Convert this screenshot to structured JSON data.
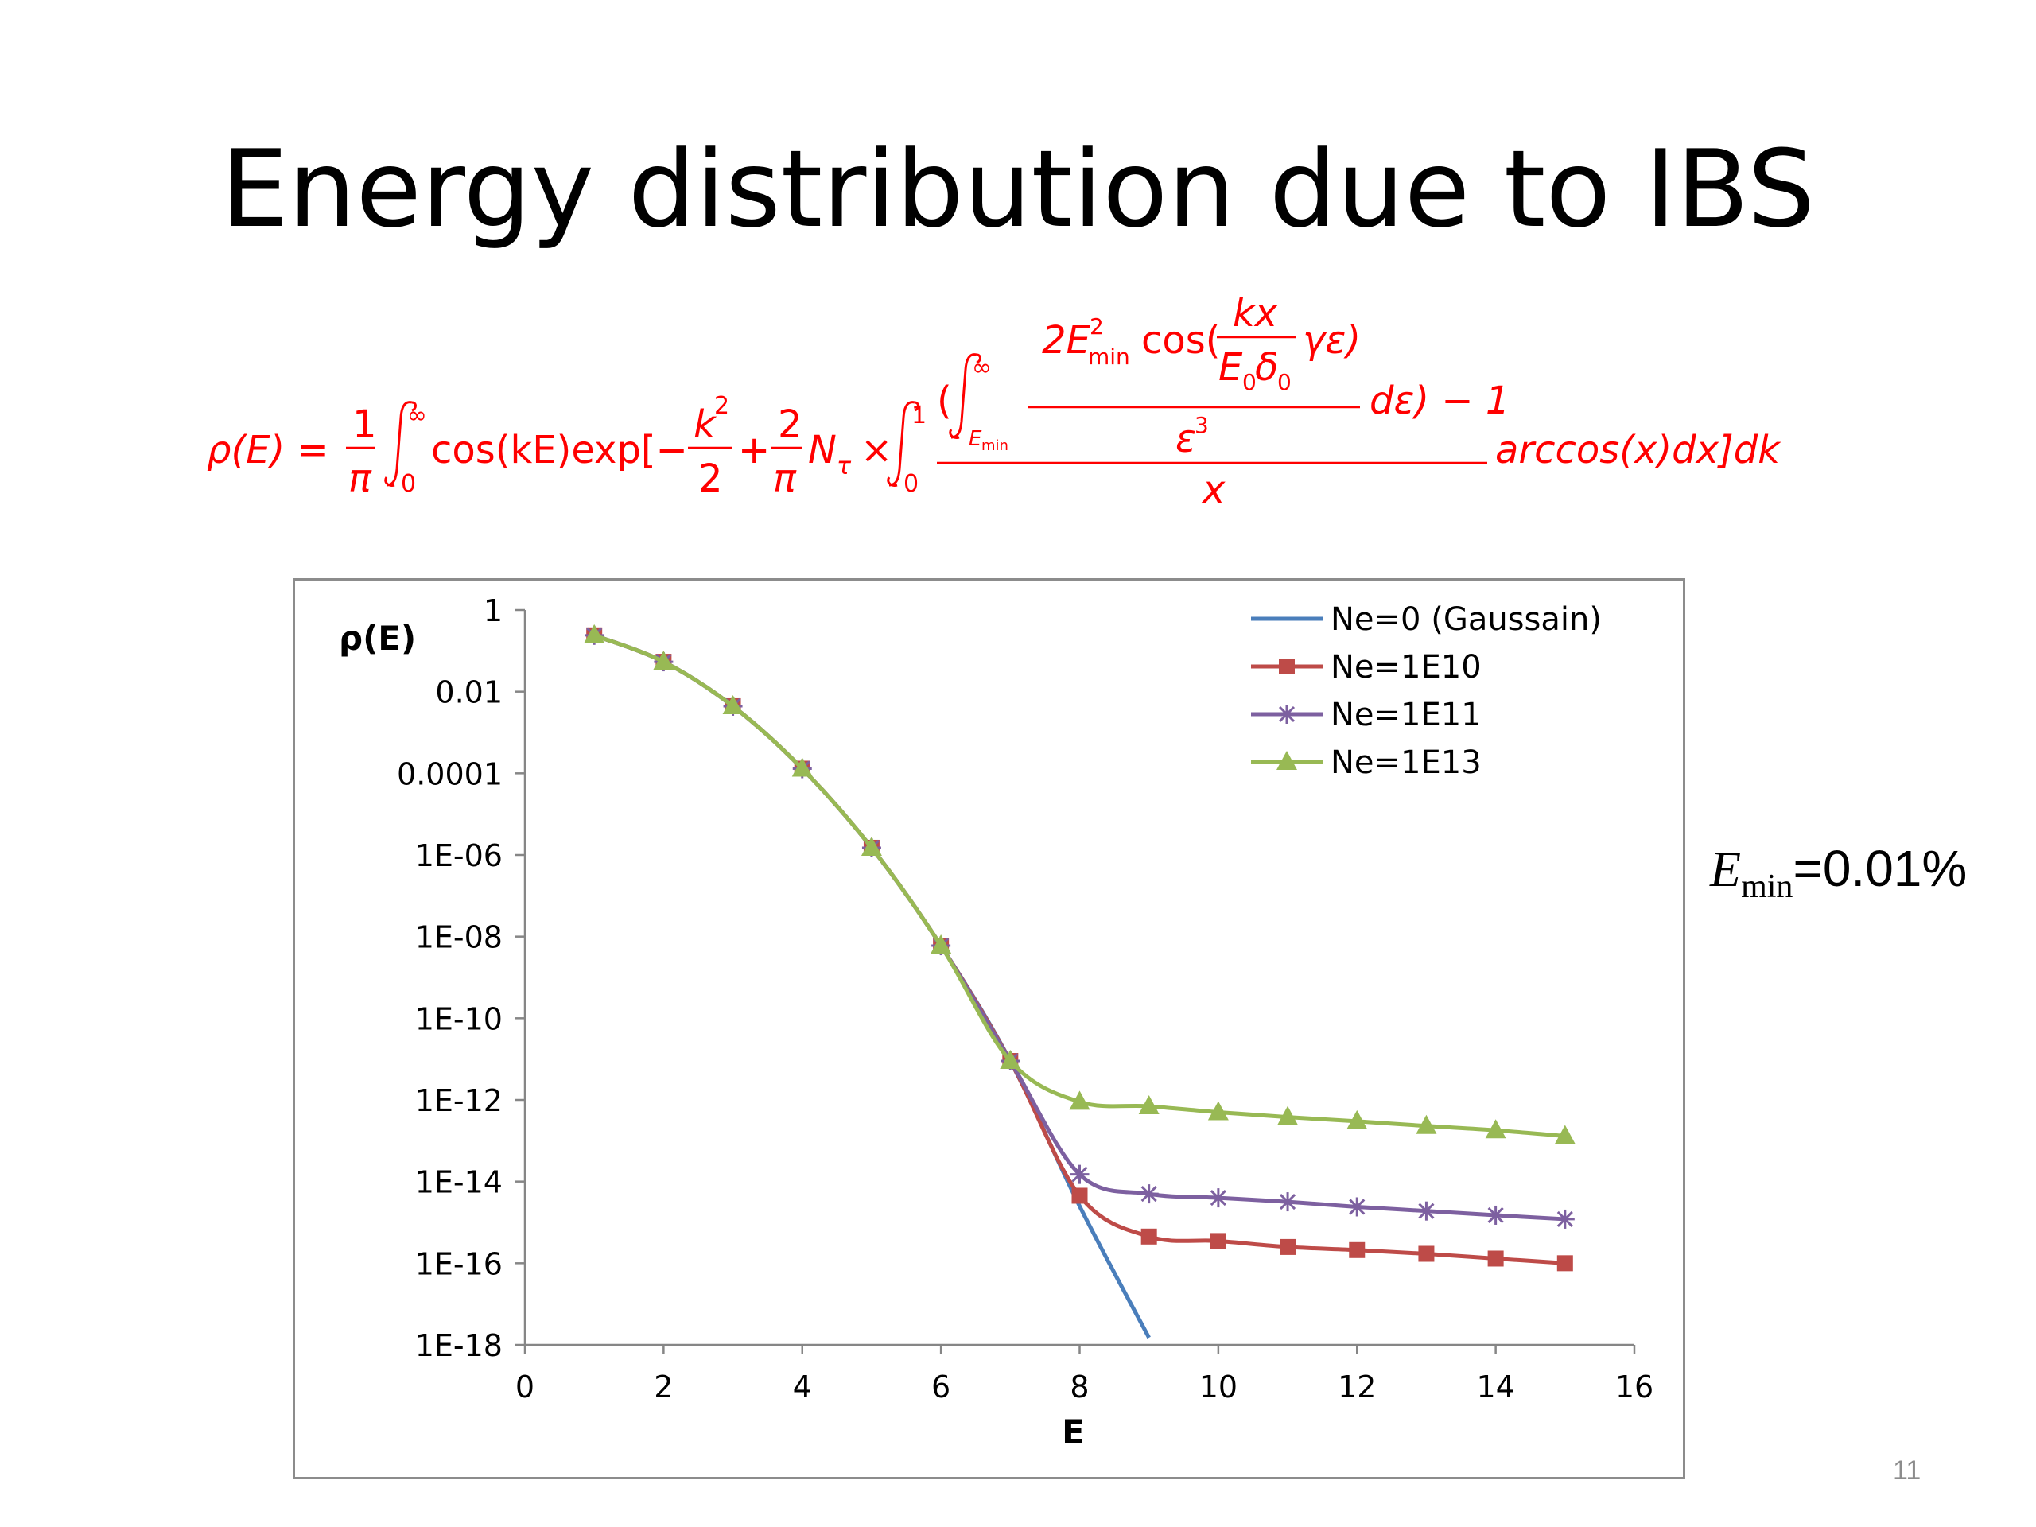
{
  "slide": {
    "title": "Energy distribution due to IBS",
    "page_number": "11",
    "emin_note": {
      "symbol": "E",
      "subscript": "min",
      "value": "=0.01%"
    },
    "formula": {
      "lhs": "ρ(E) =",
      "pi": "π",
      "one": "1",
      "zero": "0",
      "inf": "∞",
      "cos_kE_exp": "cos(kE)exp[−",
      "k2": "k",
      "two": "2",
      "plus": "+",
      "N_tau": "N",
      "tau": "τ",
      "times": "×",
      "open_paren": "(",
      "emin_lower": "E",
      "emin_lower_sub": "min",
      "num_2E": "2E",
      "num_min": "min",
      "cos_open": "cos(",
      "kx": "kx",
      "E0": "E",
      "delta0": "δ",
      "gamma_eps": "γε)",
      "eps3": "ε",
      "three": "3",
      "d_eps": "dε) − 1",
      "x_denom": "x",
      "tail": "arccos(x)dx]dk"
    },
    "colors": {
      "formula": "#ff0000"
    }
  },
  "chart_data": {
    "type": "line",
    "ylabel": "ρ(E)",
    "xlabel": "E",
    "xlim": [
      0,
      16
    ],
    "ylim": [
      1e-18,
      1
    ],
    "yscale": "log",
    "x_ticks": [
      "0",
      "2",
      "4",
      "6",
      "8",
      "10",
      "12",
      "14",
      "16"
    ],
    "y_ticks": [
      "1",
      "0.01",
      "0.0001",
      "1E-06",
      "1E-08",
      "1E-10",
      "1E-12",
      "1E-14",
      "1E-16",
      "1E-18"
    ],
    "legend_position": "top-right",
    "grid": false,
    "series": [
      {
        "name": "Ne=0 (Gaussain)",
        "color": "#4a7ebb",
        "marker": "none",
        "x": [
          1,
          2,
          3,
          4,
          5,
          6,
          7,
          8,
          9
        ],
        "y": [
          0.24,
          0.054,
          0.0044,
          0.00013,
          1.5e-06,
          6e-09,
          9e-12,
          2.5e-15,
          1.5e-18
        ]
      },
      {
        "name": "Ne=1E10",
        "color": "#be4b48",
        "marker": "square",
        "x": [
          1,
          2,
          3,
          4,
          5,
          6,
          7,
          8,
          9,
          10,
          11,
          12,
          13,
          14,
          15
        ],
        "y": [
          0.24,
          0.054,
          0.0044,
          0.00013,
          1.5e-06,
          6e-09,
          9e-12,
          4.5e-15,
          4.5e-16,
          3.5e-16,
          2.5e-16,
          2.1e-16,
          1.7e-16,
          1.3e-16,
          1e-16
        ]
      },
      {
        "name": "Ne=1E11",
        "color": "#7d60a0",
        "marker": "asterisk",
        "x": [
          1,
          2,
          3,
          4,
          5,
          6,
          7,
          8,
          9,
          10,
          11,
          12,
          13,
          14,
          15
        ],
        "y": [
          0.24,
          0.054,
          0.0044,
          0.00013,
          1.5e-06,
          6e-09,
          9e-12,
          1.5e-14,
          5e-15,
          4e-15,
          3.2e-15,
          2.4e-15,
          1.9e-15,
          1.5e-15,
          1.2e-15
        ]
      },
      {
        "name": "Ne=1E13",
        "color": "#98b954",
        "marker": "triangle",
        "x": [
          1,
          2,
          3,
          4,
          5,
          6,
          7,
          8,
          9,
          10,
          11,
          12,
          13,
          14,
          15
        ],
        "y": [
          0.24,
          0.054,
          0.0044,
          0.00013,
          1.5e-06,
          6e-09,
          9e-12,
          9e-13,
          7e-13,
          5e-13,
          3.8e-13,
          3e-13,
          2.3e-13,
          1.8e-13,
          1.3e-13
        ]
      }
    ]
  }
}
